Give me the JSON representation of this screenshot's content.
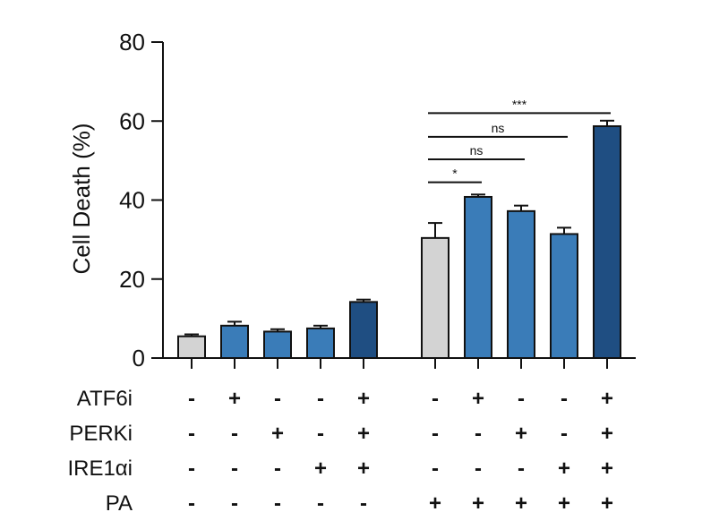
{
  "chart_data": {
    "type": "bar",
    "title": "",
    "ylabel": "Cell Death (%)",
    "xlabel": "",
    "ylim": [
      0,
      80
    ],
    "yticks": [
      0,
      20,
      40,
      60,
      80
    ],
    "grid": false,
    "bars": [
      {
        "value": 5.5,
        "error": 0.5,
        "color": "#d3d3d3"
      },
      {
        "value": 8.2,
        "error": 1.0,
        "color": "#3a7cb8"
      },
      {
        "value": 6.7,
        "error": 0.6,
        "color": "#3a7cb8"
      },
      {
        "value": 7.5,
        "error": 0.7,
        "color": "#3a7cb8"
      },
      {
        "value": 14.2,
        "error": 0.6,
        "color": "#1f4e82"
      },
      {
        "value": 30.4,
        "error": 3.8,
        "color": "#d3d3d3"
      },
      {
        "value": 40.8,
        "error": 0.6,
        "color": "#3a7cb8"
      },
      {
        "value": 37.2,
        "error": 1.4,
        "color": "#3a7cb8"
      },
      {
        "value": 31.4,
        "error": 1.6,
        "color": "#3a7cb8"
      },
      {
        "value": 58.7,
        "error": 1.4,
        "color": "#1f4e82"
      }
    ],
    "treatments": [
      {
        "label": "ATF6i",
        "signs": [
          "-",
          "+",
          "-",
          "-",
          "+",
          "-",
          "+",
          "-",
          "-",
          "+"
        ]
      },
      {
        "label": "PERKi",
        "signs": [
          "-",
          "-",
          "+",
          "-",
          "+",
          "-",
          "-",
          "+",
          "-",
          "+"
        ]
      },
      {
        "label": "IRE1αi",
        "signs": [
          "-",
          "-",
          "-",
          "+",
          "+",
          "-",
          "-",
          "-",
          "+",
          "+"
        ]
      },
      {
        "label": "PA",
        "signs": [
          "-",
          "-",
          "-",
          "-",
          "-",
          "+",
          "+",
          "+",
          "+",
          "+"
        ]
      }
    ],
    "significance": [
      {
        "from": 5,
        "to": 6,
        "label": "*",
        "y": 44.5
      },
      {
        "from": 5,
        "to": 7,
        "label": "ns",
        "y": 50.3
      },
      {
        "from": 5,
        "to": 8,
        "label": "ns",
        "y": 56.0
      },
      {
        "from": 5,
        "to": 9,
        "label": "***",
        "y": 62.0
      }
    ]
  }
}
